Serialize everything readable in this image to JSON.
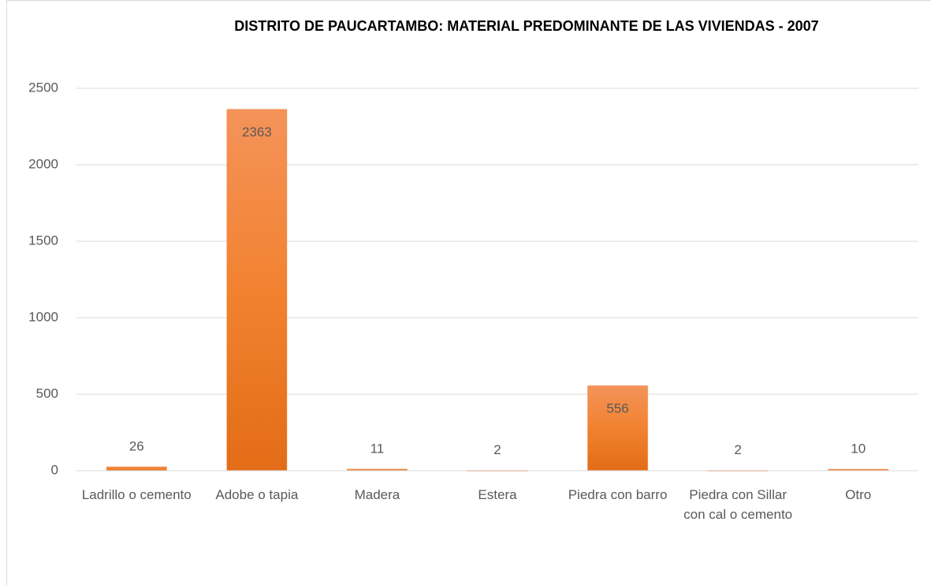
{
  "chart_data": {
    "type": "bar",
    "title": "DISTRITO DE PAUCARTAMBO: MATERIAL PREDOMINANTE DE LAS VIVIENDAS - 2007",
    "categories": [
      "Ladrillo o cemento",
      "Adobe o tapia",
      "Madera",
      "Estera",
      "Piedra con barro",
      "Piedra con Sillar con cal o cemento",
      "Otro"
    ],
    "values": [
      26,
      2363,
      11,
      2,
      556,
      2,
      10
    ],
    "color": "#ed7d31",
    "ylim": [
      0,
      2500
    ],
    "yticks": [
      0,
      500,
      1000,
      1500,
      2000,
      2500
    ],
    "grid": true
  }
}
